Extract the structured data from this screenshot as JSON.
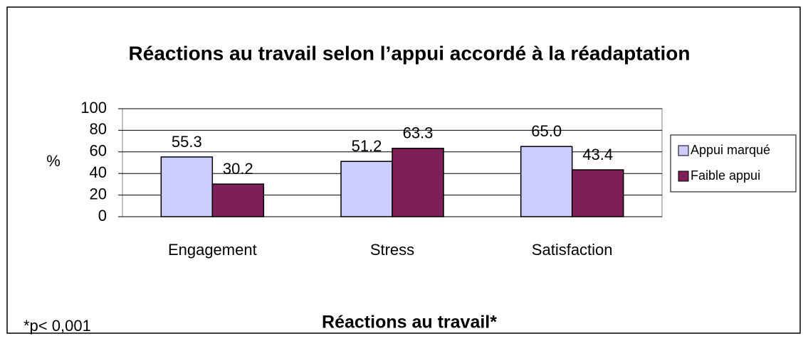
{
  "chart_data": {
    "type": "bar",
    "title": "Réactions au travail selon l’appui accordé à la réadaptation",
    "x_label": "Réactions au travail*",
    "y_label": "%",
    "footnote": "*p< 0,001",
    "categories": [
      "Engagement",
      "Stress",
      "Satisfaction"
    ],
    "series": [
      {
        "name": "Appui marqué",
        "color": "#ccccff",
        "values": [
          55.3,
          51.2,
          65.0
        ],
        "value_labels": [
          "55.3",
          "51.2",
          "65.0"
        ]
      },
      {
        "name": "Faible appui",
        "color": "#7f1f5a",
        "values": [
          30.2,
          63.3,
          43.4
        ],
        "value_labels": [
          "30.2",
          "63.3",
          "43.4"
        ]
      }
    ],
    "ylim": [
      0,
      100
    ],
    "yticks": [
      0,
      20,
      40,
      60,
      80,
      100
    ],
    "grid": true,
    "legend": "right"
  }
}
